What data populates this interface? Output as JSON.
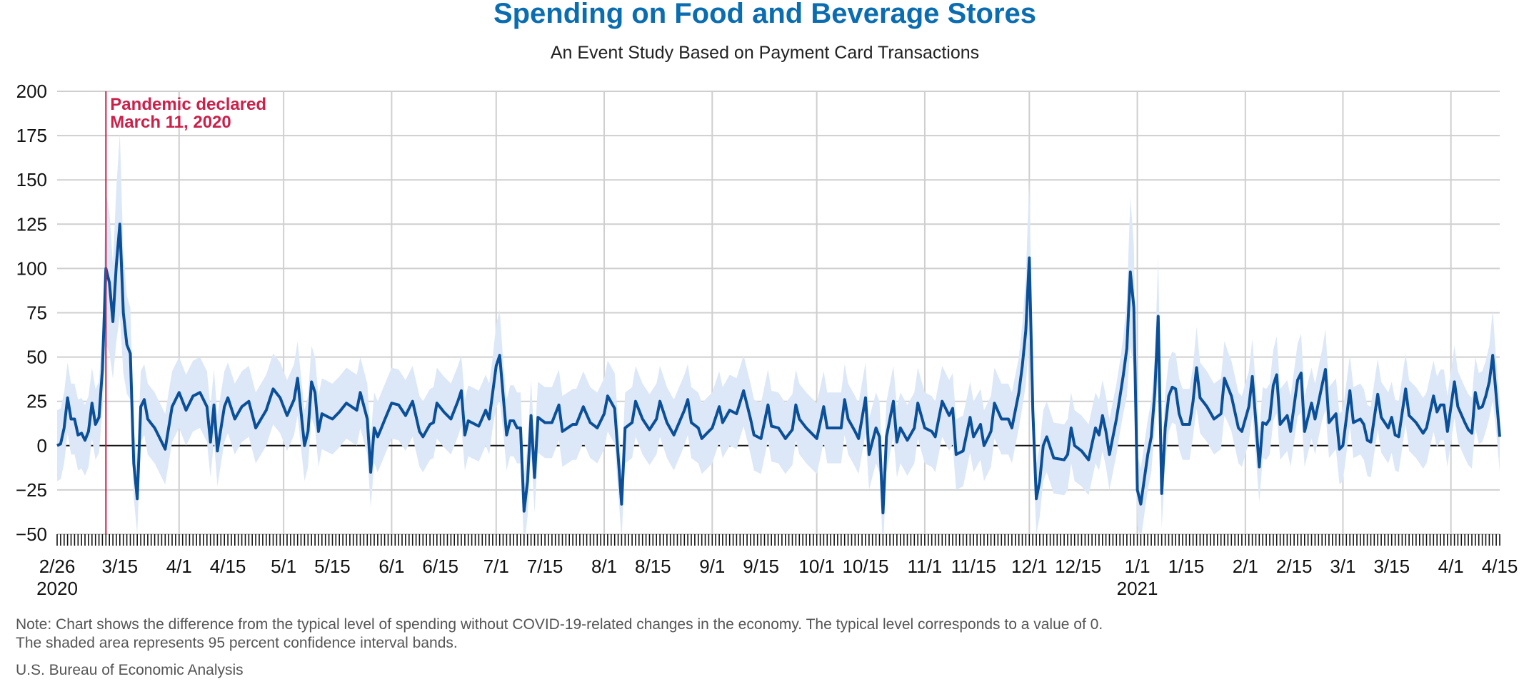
{
  "colors": {
    "title": "#0a6db1",
    "line": "#0b4f99",
    "band": "#dce8f7",
    "event": "#cc1f4a",
    "grid": "#cfcfcf",
    "zero": "#111111"
  },
  "chart_data": {
    "type": "line",
    "title": "Spending on Food and Beverage Stores",
    "subtitle": "An Event Study Based on Payment Card Transactions",
    "ylim": [
      -50,
      200
    ],
    "yticks": [
      200,
      175,
      150,
      125,
      100,
      75,
      50,
      25,
      0,
      -25,
      -50
    ],
    "grid": true,
    "x_start": "2020-02-26",
    "x_end": "2021-04-15",
    "xticks": [
      {
        "date": "2020-02-26",
        "label": "2/26",
        "sub": "2020"
      },
      {
        "date": "2020-03-15",
        "label": "3/15"
      },
      {
        "date": "2020-04-01",
        "label": "4/1"
      },
      {
        "date": "2020-04-15",
        "label": "4/15"
      },
      {
        "date": "2020-05-01",
        "label": "5/1"
      },
      {
        "date": "2020-05-15",
        "label": "5/15"
      },
      {
        "date": "2020-06-01",
        "label": "6/1"
      },
      {
        "date": "2020-06-15",
        "label": "6/15"
      },
      {
        "date": "2020-07-01",
        "label": "7/1"
      },
      {
        "date": "2020-07-15",
        "label": "7/15"
      },
      {
        "date": "2020-08-01",
        "label": "8/1"
      },
      {
        "date": "2020-08-15",
        "label": "8/15"
      },
      {
        "date": "2020-09-01",
        "label": "9/1"
      },
      {
        "date": "2020-09-15",
        "label": "9/15"
      },
      {
        "date": "2020-10-01",
        "label": "10/1"
      },
      {
        "date": "2020-10-15",
        "label": "10/15"
      },
      {
        "date": "2020-11-01",
        "label": "11/1"
      },
      {
        "date": "2020-11-15",
        "label": "11/15"
      },
      {
        "date": "2020-12-01",
        "label": "12/1"
      },
      {
        "date": "2020-12-15",
        "label": "12/15"
      },
      {
        "date": "2021-01-01",
        "label": "1/1",
        "sub": "2021"
      },
      {
        "date": "2021-01-15",
        "label": "1/15"
      },
      {
        "date": "2021-02-01",
        "label": "2/1"
      },
      {
        "date": "2021-02-15",
        "label": "2/15"
      },
      {
        "date": "2021-03-01",
        "label": "3/1"
      },
      {
        "date": "2021-03-15",
        "label": "3/15"
      },
      {
        "date": "2021-04-01",
        "label": "4/1"
      },
      {
        "date": "2021-04-15",
        "label": "4/15"
      }
    ],
    "event": {
      "date": "2020-03-11",
      "label_line1": "Pandemic declared",
      "label_line2": "March 11, 2020"
    },
    "keypoints": [
      [
        "2020-02-26",
        0
      ],
      [
        "2020-02-27",
        1
      ],
      [
        "2020-02-28",
        10
      ],
      [
        "2020-02-29",
        27
      ],
      [
        "2020-03-01",
        15
      ],
      [
        "2020-03-02",
        15
      ],
      [
        "2020-03-03",
        6
      ],
      [
        "2020-03-04",
        7
      ],
      [
        "2020-03-05",
        3
      ],
      [
        "2020-03-06",
        8
      ],
      [
        "2020-03-07",
        24
      ],
      [
        "2020-03-08",
        12
      ],
      [
        "2020-03-09",
        16
      ],
      [
        "2020-03-10",
        43
      ],
      [
        "2020-03-11",
        100
      ],
      [
        "2020-03-12",
        92
      ],
      [
        "2020-03-13",
        70
      ],
      [
        "2020-03-14",
        102
      ],
      [
        "2020-03-15",
        125
      ],
      [
        "2020-03-16",
        75
      ],
      [
        "2020-03-17",
        57
      ],
      [
        "2020-03-18",
        52
      ],
      [
        "2020-03-19",
        -10
      ],
      [
        "2020-03-20",
        -30
      ],
      [
        "2020-03-21",
        22
      ],
      [
        "2020-03-22",
        26
      ],
      [
        "2020-03-23",
        15
      ],
      [
        "2020-03-25",
        10
      ],
      [
        "2020-03-28",
        -2
      ],
      [
        "2020-03-30",
        22
      ],
      [
        "2020-04-01",
        30
      ],
      [
        "2020-04-03",
        20
      ],
      [
        "2020-04-05",
        28
      ],
      [
        "2020-04-07",
        30
      ],
      [
        "2020-04-09",
        22
      ],
      [
        "2020-04-10",
        2
      ],
      [
        "2020-04-11",
        23
      ],
      [
        "2020-04-12",
        -3
      ],
      [
        "2020-04-14",
        22
      ],
      [
        "2020-04-15",
        27
      ],
      [
        "2020-04-17",
        15
      ],
      [
        "2020-04-19",
        22
      ],
      [
        "2020-04-21",
        25
      ],
      [
        "2020-04-23",
        10
      ],
      [
        "2020-04-26",
        20
      ],
      [
        "2020-04-28",
        32
      ],
      [
        "2020-04-30",
        27
      ],
      [
        "2020-05-02",
        17
      ],
      [
        "2020-05-04",
        26
      ],
      [
        "2020-05-05",
        38
      ],
      [
        "2020-05-07",
        0
      ],
      [
        "2020-05-08",
        8
      ],
      [
        "2020-05-09",
        36
      ],
      [
        "2020-05-10",
        30
      ],
      [
        "2020-05-11",
        8
      ],
      [
        "2020-05-12",
        18
      ],
      [
        "2020-05-15",
        15
      ],
      [
        "2020-05-17",
        19
      ],
      [
        "2020-05-19",
        24
      ],
      [
        "2020-05-22",
        20
      ],
      [
        "2020-05-23",
        30
      ],
      [
        "2020-05-25",
        15
      ],
      [
        "2020-05-26",
        -15
      ],
      [
        "2020-05-27",
        10
      ],
      [
        "2020-05-28",
        5
      ],
      [
        "2020-06-01",
        24
      ],
      [
        "2020-06-03",
        23
      ],
      [
        "2020-06-05",
        17
      ],
      [
        "2020-06-07",
        25
      ],
      [
        "2020-06-09",
        8
      ],
      [
        "2020-06-10",
        5
      ],
      [
        "2020-06-12",
        12
      ],
      [
        "2020-06-13",
        13
      ],
      [
        "2020-06-14",
        24
      ],
      [
        "2020-06-16",
        19
      ],
      [
        "2020-06-18",
        15
      ],
      [
        "2020-06-20",
        25
      ],
      [
        "2020-06-21",
        31
      ],
      [
        "2020-06-22",
        6
      ],
      [
        "2020-06-23",
        14
      ],
      [
        "2020-06-26",
        11
      ],
      [
        "2020-06-28",
        20
      ],
      [
        "2020-06-29",
        15
      ],
      [
        "2020-06-30",
        30
      ],
      [
        "2020-07-01",
        45
      ],
      [
        "2020-07-02",
        51
      ],
      [
        "2020-07-04",
        6
      ],
      [
        "2020-07-05",
        14
      ],
      [
        "2020-07-06",
        14
      ],
      [
        "2020-07-07",
        10
      ],
      [
        "2020-07-08",
        10
      ],
      [
        "2020-07-09",
        -37
      ],
      [
        "2020-07-10",
        -20
      ],
      [
        "2020-07-11",
        17
      ],
      [
        "2020-07-12",
        -18
      ],
      [
        "2020-07-13",
        16
      ],
      [
        "2020-07-15",
        13
      ],
      [
        "2020-07-17",
        13
      ],
      [
        "2020-07-19",
        23
      ],
      [
        "2020-07-20",
        8
      ],
      [
        "2020-07-23",
        12
      ],
      [
        "2020-07-24",
        12
      ],
      [
        "2020-07-26",
        22
      ],
      [
        "2020-07-28",
        13
      ],
      [
        "2020-07-30",
        10
      ],
      [
        "2020-08-01",
        18
      ],
      [
        "2020-08-02",
        28
      ],
      [
        "2020-08-04",
        21
      ],
      [
        "2020-08-06",
        -33
      ],
      [
        "2020-08-07",
        10
      ],
      [
        "2020-08-09",
        13
      ],
      [
        "2020-08-10",
        25
      ],
      [
        "2020-08-12",
        15
      ],
      [
        "2020-08-14",
        9
      ],
      [
        "2020-08-16",
        15
      ],
      [
        "2020-08-17",
        25
      ],
      [
        "2020-08-19",
        13
      ],
      [
        "2020-08-21",
        6
      ],
      [
        "2020-08-24",
        20
      ],
      [
        "2020-08-25",
        26
      ],
      [
        "2020-08-26",
        13
      ],
      [
        "2020-08-28",
        10
      ],
      [
        "2020-08-29",
        4
      ],
      [
        "2020-09-01",
        10
      ],
      [
        "2020-09-03",
        22
      ],
      [
        "2020-09-04",
        13
      ],
      [
        "2020-09-06",
        20
      ],
      [
        "2020-09-08",
        18
      ],
      [
        "2020-09-10",
        31
      ],
      [
        "2020-09-12",
        15
      ],
      [
        "2020-09-13",
        6
      ],
      [
        "2020-09-15",
        4
      ],
      [
        "2020-09-17",
        23
      ],
      [
        "2020-09-18",
        11
      ],
      [
        "2020-09-20",
        10
      ],
      [
        "2020-09-22",
        4
      ],
      [
        "2020-09-24",
        9
      ],
      [
        "2020-09-25",
        23
      ],
      [
        "2020-09-26",
        15
      ],
      [
        "2020-09-28",
        10
      ],
      [
        "2020-10-01",
        4
      ],
      [
        "2020-10-03",
        22
      ],
      [
        "2020-10-04",
        10
      ],
      [
        "2020-10-06",
        10
      ],
      [
        "2020-10-08",
        10
      ],
      [
        "2020-10-09",
        26
      ],
      [
        "2020-10-10",
        15
      ],
      [
        "2020-10-12",
        8
      ],
      [
        "2020-10-13",
        4
      ],
      [
        "2020-10-15",
        27
      ],
      [
        "2020-10-16",
        -5
      ],
      [
        "2020-10-18",
        10
      ],
      [
        "2020-10-19",
        5
      ],
      [
        "2020-10-20",
        -38
      ],
      [
        "2020-10-21",
        5
      ],
      [
        "2020-10-23",
        25
      ],
      [
        "2020-10-24",
        2
      ],
      [
        "2020-10-25",
        10
      ],
      [
        "2020-10-27",
        3
      ],
      [
        "2020-10-29",
        10
      ],
      [
        "2020-10-30",
        24
      ],
      [
        "2020-11-01",
        10
      ],
      [
        "2020-11-03",
        8
      ],
      [
        "2020-11-04",
        5
      ],
      [
        "2020-11-06",
        25
      ],
      [
        "2020-11-08",
        17
      ],
      [
        "2020-11-09",
        21
      ],
      [
        "2020-11-10",
        -5
      ],
      [
        "2020-11-12",
        -3
      ],
      [
        "2020-11-14",
        16
      ],
      [
        "2020-11-15",
        5
      ],
      [
        "2020-11-17",
        12
      ],
      [
        "2020-11-18",
        0
      ],
      [
        "2020-11-20",
        8
      ],
      [
        "2020-11-21",
        24
      ],
      [
        "2020-11-23",
        15
      ],
      [
        "2020-11-25",
        15
      ],
      [
        "2020-11-26",
        10
      ],
      [
        "2020-11-28",
        30
      ],
      [
        "2020-11-29",
        45
      ],
      [
        "2020-11-30",
        65
      ],
      [
        "2020-12-01",
        106
      ],
      [
        "2020-12-02",
        20
      ],
      [
        "2020-12-03",
        -30
      ],
      [
        "2020-12-04",
        -20
      ],
      [
        "2020-12-05",
        0
      ],
      [
        "2020-12-06",
        5
      ],
      [
        "2020-12-08",
        -7
      ],
      [
        "2020-12-11",
        -8
      ],
      [
        "2020-12-12",
        -5
      ],
      [
        "2020-12-13",
        10
      ],
      [
        "2020-12-14",
        0
      ],
      [
        "2020-12-16",
        -3
      ],
      [
        "2020-12-18",
        -8
      ],
      [
        "2020-12-20",
        10
      ],
      [
        "2020-12-21",
        6
      ],
      [
        "2020-12-22",
        17
      ],
      [
        "2020-12-23",
        8
      ],
      [
        "2020-12-24",
        -5
      ],
      [
        "2020-12-26",
        15
      ],
      [
        "2020-12-28",
        40
      ],
      [
        "2020-12-29",
        55
      ],
      [
        "2020-12-30",
        98
      ],
      [
        "2020-12-31",
        78
      ],
      [
        "2021-01-01",
        -25
      ],
      [
        "2021-01-02",
        -33
      ],
      [
        "2021-01-04",
        -5
      ],
      [
        "2021-01-05",
        5
      ],
      [
        "2021-01-06",
        30
      ],
      [
        "2021-01-07",
        73
      ],
      [
        "2021-01-08",
        -27
      ],
      [
        "2021-01-09",
        10
      ],
      [
        "2021-01-10",
        28
      ],
      [
        "2021-01-11",
        33
      ],
      [
        "2021-01-12",
        32
      ],
      [
        "2021-01-13",
        18
      ],
      [
        "2021-01-14",
        12
      ],
      [
        "2021-01-16",
        12
      ],
      [
        "2021-01-17",
        25
      ],
      [
        "2021-01-18",
        44
      ],
      [
        "2021-01-19",
        27
      ],
      [
        "2021-01-21",
        22
      ],
      [
        "2021-01-23",
        15
      ],
      [
        "2021-01-25",
        18
      ],
      [
        "2021-01-26",
        38
      ],
      [
        "2021-01-28",
        28
      ],
      [
        "2021-01-30",
        10
      ],
      [
        "2021-01-31",
        8
      ],
      [
        "2021-02-02",
        22
      ],
      [
        "2021-02-03",
        39
      ],
      [
        "2021-02-05",
        -12
      ],
      [
        "2021-02-06",
        13
      ],
      [
        "2021-02-07",
        12
      ],
      [
        "2021-02-08",
        15
      ],
      [
        "2021-02-09",
        34
      ],
      [
        "2021-02-10",
        40
      ],
      [
        "2021-02-11",
        12
      ],
      [
        "2021-02-13",
        17
      ],
      [
        "2021-02-14",
        8
      ],
      [
        "2021-02-16",
        37
      ],
      [
        "2021-02-17",
        41
      ],
      [
        "2021-02-18",
        8
      ],
      [
        "2021-02-20",
        24
      ],
      [
        "2021-02-21",
        15
      ],
      [
        "2021-02-23",
        34
      ],
      [
        "2021-02-24",
        43
      ],
      [
        "2021-02-25",
        13
      ],
      [
        "2021-02-27",
        18
      ],
      [
        "2021-02-28",
        -2
      ],
      [
        "2021-03-01",
        0
      ],
      [
        "2021-03-03",
        31
      ],
      [
        "2021-03-04",
        13
      ],
      [
        "2021-03-06",
        15
      ],
      [
        "2021-03-07",
        12
      ],
      [
        "2021-03-08",
        3
      ],
      [
        "2021-03-09",
        2
      ],
      [
        "2021-03-11",
        29
      ],
      [
        "2021-03-12",
        16
      ],
      [
        "2021-03-14",
        10
      ],
      [
        "2021-03-15",
        16
      ],
      [
        "2021-03-16",
        6
      ],
      [
        "2021-03-17",
        5
      ],
      [
        "2021-03-19",
        32
      ],
      [
        "2021-03-20",
        17
      ],
      [
        "2021-03-22",
        13
      ],
      [
        "2021-03-24",
        7
      ],
      [
        "2021-03-25",
        10
      ],
      [
        "2021-03-27",
        28
      ],
      [
        "2021-03-28",
        19
      ],
      [
        "2021-03-29",
        23
      ],
      [
        "2021-03-30",
        23
      ],
      [
        "2021-03-31",
        8
      ],
      [
        "2021-04-02",
        36
      ],
      [
        "2021-04-03",
        22
      ],
      [
        "2021-04-05",
        13
      ],
      [
        "2021-04-06",
        9
      ],
      [
        "2021-04-07",
        7
      ],
      [
        "2021-04-08",
        30
      ],
      [
        "2021-04-09",
        21
      ],
      [
        "2021-04-10",
        22
      ],
      [
        "2021-04-11",
        28
      ],
      [
        "2021-04-12",
        36
      ],
      [
        "2021-04-13",
        51
      ],
      [
        "2021-04-14",
        28
      ],
      [
        "2021-04-15",
        5
      ]
    ],
    "ci_halfwidth": 20
  },
  "note_line1": "Note: Chart shows the difference from the typical level of spending without COVID-19-related changes in the economy. The typical level corresponds to a value of 0.",
  "note_line2": "The shaded area represents 95 percent confidence interval bands.",
  "source": "U.S. Bureau of Economic Analysis"
}
